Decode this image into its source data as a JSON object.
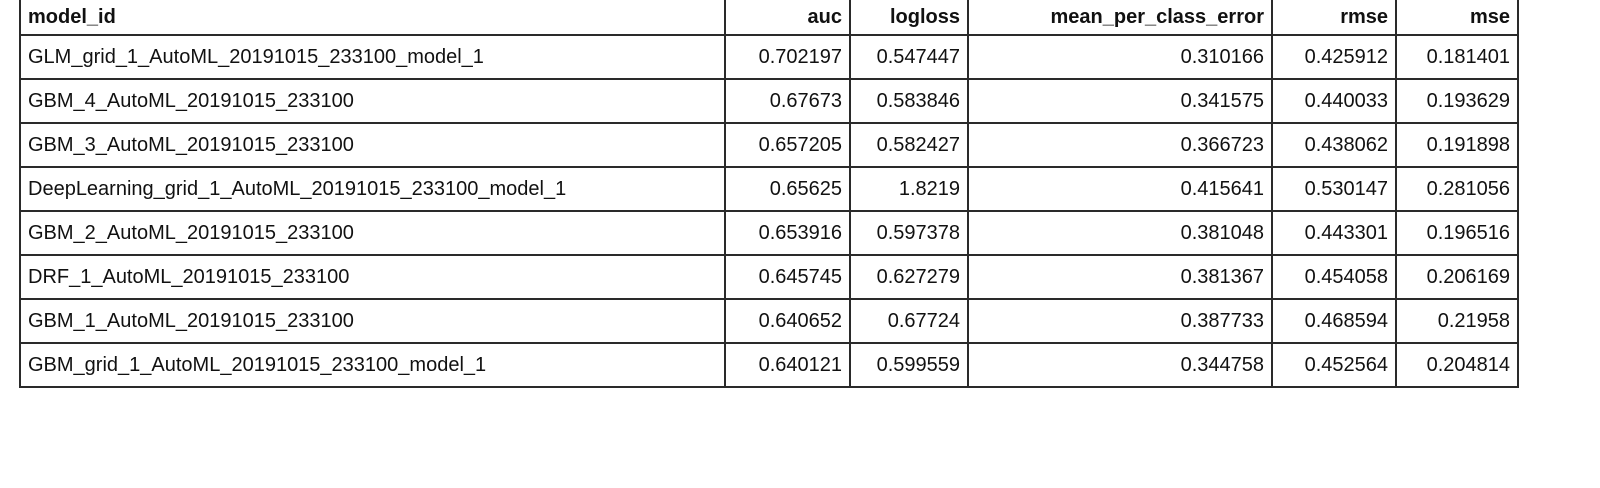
{
  "table": {
    "columns": [
      "model_id",
      "auc",
      "logloss",
      "mean_per_class_error",
      "rmse",
      "mse"
    ],
    "rows": [
      [
        "GLM_grid_1_AutoML_20191015_233100_model_1",
        "0.702197",
        "0.547447",
        "0.310166",
        "0.425912",
        "0.181401"
      ],
      [
        "GBM_4_AutoML_20191015_233100",
        "0.67673",
        "0.583846",
        "0.341575",
        "0.440033",
        "0.193629"
      ],
      [
        "GBM_3_AutoML_20191015_233100",
        "0.657205",
        "0.582427",
        "0.366723",
        "0.438062",
        "0.191898"
      ],
      [
        "DeepLearning_grid_1_AutoML_20191015_233100_model_1",
        "0.65625",
        "1.8219",
        "0.415641",
        "0.530147",
        "0.281056"
      ],
      [
        "GBM_2_AutoML_20191015_233100",
        "0.653916",
        "0.597378",
        "0.381048",
        "0.443301",
        "0.196516"
      ],
      [
        "DRF_1_AutoML_20191015_233100",
        "0.645745",
        "0.627279",
        "0.381367",
        "0.454058",
        "0.206169"
      ],
      [
        "GBM_1_AutoML_20191015_233100",
        "0.640652",
        "0.67724",
        "0.387733",
        "0.468594",
        "0.21958"
      ],
      [
        "GBM_grid_1_AutoML_20191015_233100_model_1",
        "0.640121",
        "0.599559",
        "0.344758",
        "0.452564",
        "0.204814"
      ]
    ]
  }
}
